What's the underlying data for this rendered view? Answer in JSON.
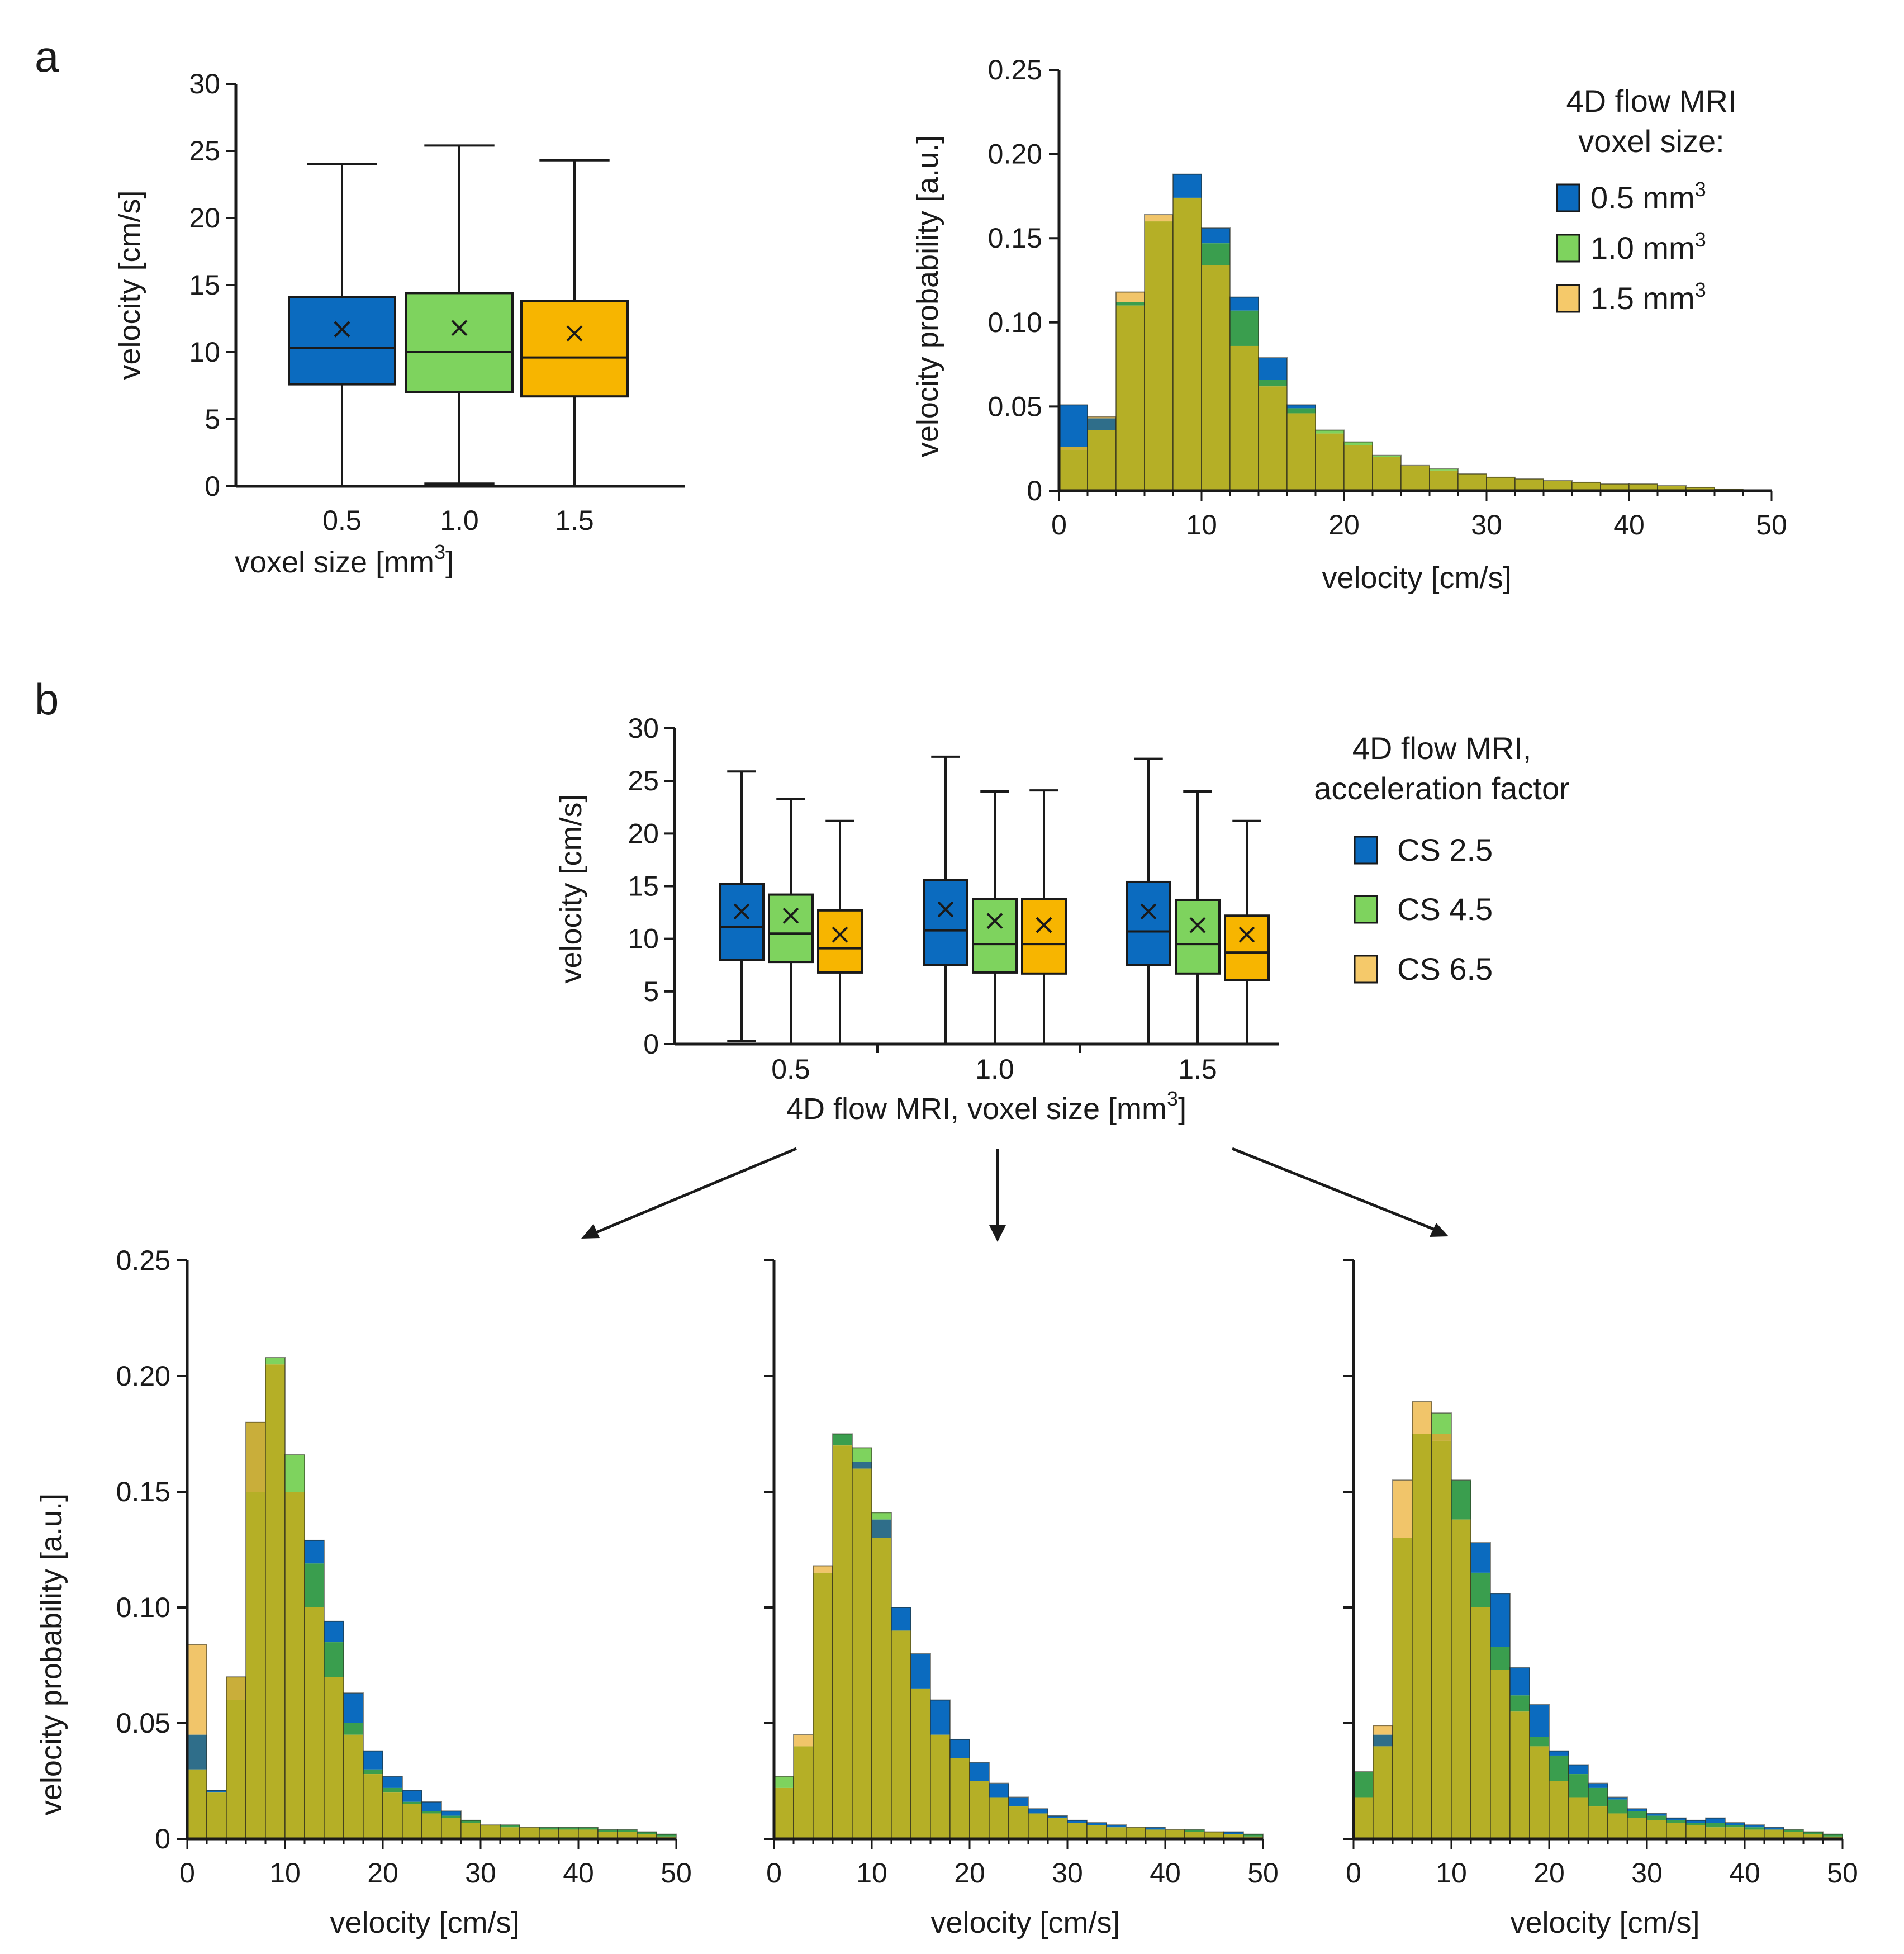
{
  "panel_labels": {
    "a": "a",
    "b": "b"
  },
  "colors": {
    "blue": "#0b6bbf",
    "green": "#7ed35e",
    "orange": "#f7b500",
    "mix": "#b5af26",
    "axis": "#1a1a1a"
  },
  "chart_data": [
    {
      "id": "a_box",
      "type": "box",
      "xlabel": "voxel size [mm",
      "xlabel_sup": "3",
      "xlabel_end": "]",
      "ylabel": "velocity [cm/s]",
      "ylim": [
        0,
        30
      ],
      "yticks": [
        0,
        5,
        10,
        15,
        20,
        25,
        30
      ],
      "categories": [
        "0.5",
        "1.0",
        "1.5"
      ],
      "boxes": [
        {
          "name": "0.5",
          "min": 0,
          "q1": 7.6,
          "median": 10.3,
          "q3": 14.1,
          "max": 24.0,
          "mean": 11.7,
          "color": "#0b6bbf"
        },
        {
          "name": "1.0",
          "min": 0.2,
          "q1": 7.0,
          "median": 10.0,
          "q3": 14.4,
          "max": 25.4,
          "mean": 11.8,
          "color": "#7ed35e"
        },
        {
          "name": "1.5",
          "min": 0,
          "q1": 6.7,
          "median": 9.6,
          "q3": 13.8,
          "max": 24.3,
          "mean": 11.4,
          "color": "#f7b500"
        }
      ]
    },
    {
      "id": "a_hist",
      "type": "histogram",
      "xlabel": "velocity [cm/s]",
      "ylabel": "velocity probability [a.u.]",
      "xlim": [
        0,
        50
      ],
      "ylim": [
        0,
        0.25
      ],
      "xticks": [
        "0",
        "10",
        "20",
        "30",
        "40",
        "50"
      ],
      "yticks": [
        "0",
        "0.05",
        "0.10",
        "0.15",
        "0.20",
        "0.25"
      ],
      "bin_width": 2,
      "legend_title": [
        "4D flow MRI",
        "voxel size:"
      ],
      "series": [
        {
          "name": "0.5 mm",
          "sup": "3",
          "color": "#0b6bbf",
          "values": [
            0.051,
            0.043,
            0.11,
            0.16,
            0.188,
            0.156,
            0.115,
            0.079,
            0.051,
            0.034,
            0.027,
            0.02,
            0.015,
            0.012,
            0.01,
            0.008,
            0.007,
            0.006,
            0.005,
            0.004,
            0.004,
            0.003,
            0.002,
            0.001,
            0.0
          ]
        },
        {
          "name": "1.0 mm",
          "sup": "3",
          "color": "#7ed35e",
          "values": [
            0.024,
            0.036,
            0.112,
            0.16,
            0.174,
            0.147,
            0.107,
            0.066,
            0.049,
            0.036,
            0.029,
            0.021,
            0.015,
            0.013,
            0.01,
            0.008,
            0.007,
            0.006,
            0.005,
            0.004,
            0.004,
            0.003,
            0.002,
            0.001,
            0.0
          ]
        },
        {
          "name": "1.5 mm",
          "sup": "3",
          "color": "#f7b500",
          "values": [
            0.026,
            0.044,
            0.118,
            0.164,
            0.174,
            0.134,
            0.086,
            0.062,
            0.046,
            0.034,
            0.027,
            0.02,
            0.015,
            0.012,
            0.01,
            0.008,
            0.007,
            0.006,
            0.005,
            0.004,
            0.004,
            0.003,
            0.002,
            0.001,
            0.0
          ]
        }
      ]
    },
    {
      "id": "b_box",
      "type": "box",
      "xlabel": "4D flow MRI, voxel size [mm",
      "xlabel_sup": "3",
      "xlabel_end": "]",
      "ylabel": "velocity [cm/s]",
      "ylim": [
        0,
        30
      ],
      "yticks": [
        0,
        5,
        10,
        15,
        20,
        25,
        30
      ],
      "categories": [
        "0.5",
        "1.0",
        "1.5"
      ],
      "legend_title": [
        "4D flow MRI,",
        "acceleration factor"
      ],
      "legend": [
        {
          "name": "CS 2.5",
          "color": "#0b6bbf"
        },
        {
          "name": "CS 4.5",
          "color": "#7ed35e"
        },
        {
          "name": "CS 6.5",
          "color": "#f7b500"
        }
      ],
      "groups": [
        {
          "category": "0.5",
          "boxes": [
            {
              "name": "CS 2.5",
              "min": 0.3,
              "q1": 8.0,
              "median": 11.1,
              "q3": 15.2,
              "max": 25.9,
              "mean": 12.6
            },
            {
              "name": "CS 4.5",
              "min": 0,
              "q1": 7.8,
              "median": 10.5,
              "q3": 14.2,
              "max": 23.3,
              "mean": 12.2
            },
            {
              "name": "CS 6.5",
              "min": 0,
              "q1": 6.8,
              "median": 9.1,
              "q3": 12.7,
              "max": 21.2,
              "mean": 10.4
            }
          ]
        },
        {
          "category": "1.0",
          "boxes": [
            {
              "name": "CS 2.5",
              "min": 0,
              "q1": 7.5,
              "median": 10.8,
              "q3": 15.6,
              "max": 27.3,
              "mean": 12.8
            },
            {
              "name": "CS 4.5",
              "min": 0,
              "q1": 6.8,
              "median": 9.5,
              "q3": 13.8,
              "max": 24.0,
              "mean": 11.7
            },
            {
              "name": "CS 6.5",
              "min": 0,
              "q1": 6.7,
              "median": 9.5,
              "q3": 13.8,
              "max": 24.1,
              "mean": 11.3
            }
          ]
        },
        {
          "category": "1.5",
          "boxes": [
            {
              "name": "CS 2.5",
              "min": 0,
              "q1": 7.5,
              "median": 10.7,
              "q3": 15.4,
              "max": 27.1,
              "mean": 12.6
            },
            {
              "name": "CS 4.5",
              "min": 0,
              "q1": 6.7,
              "median": 9.5,
              "q3": 13.7,
              "max": 24.0,
              "mean": 11.3
            },
            {
              "name": "CS 6.5",
              "min": 0,
              "q1": 6.1,
              "median": 8.7,
              "q3": 12.2,
              "max": 21.2,
              "mean": 10.4
            }
          ]
        }
      ]
    },
    {
      "id": "b_hist_05",
      "type": "histogram",
      "xlabel": "velocity [cm/s]",
      "ylabel": "velocity probability [a.u.]",
      "xlim": [
        0,
        50
      ],
      "ylim": [
        0,
        0.25
      ],
      "xticks": [
        "0",
        "10",
        "20",
        "30",
        "40",
        "50"
      ],
      "yticks": [
        "0",
        "0.05",
        "0.10",
        "0.15",
        "0.20",
        "0.25"
      ],
      "bin_width": 2,
      "series": [
        {
          "name": "CS 2.5",
          "color": "#0b6bbf",
          "values": [
            0.045,
            0.021,
            0.07,
            0.18,
            0.205,
            0.15,
            0.129,
            0.094,
            0.063,
            0.038,
            0.027,
            0.021,
            0.016,
            0.012,
            0.008,
            0.006,
            0.006,
            0.005,
            0.005,
            0.005,
            0.005,
            0.004,
            0.004,
            0.003,
            0.002
          ]
        },
        {
          "name": "CS 4.5",
          "color": "#7ed35e",
          "values": [
            0.03,
            0.02,
            0.06,
            0.15,
            0.208,
            0.166,
            0.119,
            0.085,
            0.05,
            0.03,
            0.022,
            0.016,
            0.012,
            0.01,
            0.008,
            0.006,
            0.006,
            0.005,
            0.005,
            0.005,
            0.005,
            0.004,
            0.004,
            0.003,
            0.002
          ]
        },
        {
          "name": "CS 6.5",
          "color": "#f7b500",
          "values": [
            0.084,
            0.02,
            0.07,
            0.18,
            0.205,
            0.15,
            0.1,
            0.07,
            0.045,
            0.028,
            0.02,
            0.015,
            0.011,
            0.009,
            0.007,
            0.006,
            0.005,
            0.005,
            0.004,
            0.004,
            0.004,
            0.003,
            0.003,
            0.002,
            0.001
          ]
        }
      ]
    },
    {
      "id": "b_hist_10",
      "type": "histogram",
      "xlabel": "velocity [cm/s]",
      "xlim": [
        0,
        50
      ],
      "ylim": [
        0,
        0.25
      ],
      "xticks": [
        "0",
        "10",
        "20",
        "30",
        "40",
        "50"
      ],
      "bin_width": 2,
      "series": [
        {
          "name": "CS 2.5",
          "color": "#0b6bbf",
          "values": [
            0.022,
            0.04,
            0.115,
            0.175,
            0.163,
            0.138,
            0.1,
            0.08,
            0.06,
            0.043,
            0.033,
            0.024,
            0.018,
            0.013,
            0.01,
            0.008,
            0.007,
            0.006,
            0.005,
            0.005,
            0.004,
            0.004,
            0.003,
            0.003,
            0.002
          ]
        },
        {
          "name": "CS 4.5",
          "color": "#7ed35e",
          "values": [
            0.027,
            0.04,
            0.115,
            0.175,
            0.169,
            0.141,
            0.09,
            0.065,
            0.045,
            0.035,
            0.025,
            0.018,
            0.014,
            0.011,
            0.009,
            0.007,
            0.006,
            0.005,
            0.005,
            0.004,
            0.004,
            0.004,
            0.003,
            0.002,
            0.002
          ]
        },
        {
          "name": "CS 6.5",
          "color": "#f7b500",
          "values": [
            0.022,
            0.045,
            0.118,
            0.17,
            0.16,
            0.13,
            0.09,
            0.065,
            0.045,
            0.035,
            0.025,
            0.018,
            0.014,
            0.011,
            0.009,
            0.007,
            0.006,
            0.005,
            0.005,
            0.004,
            0.004,
            0.003,
            0.003,
            0.002,
            0.001
          ]
        }
      ]
    },
    {
      "id": "b_hist_15",
      "type": "histogram",
      "xlabel": "velocity [cm/s]",
      "xlim": [
        0,
        50
      ],
      "ylim": [
        0,
        0.25
      ],
      "xticks": [
        "0",
        "10",
        "20",
        "30",
        "40",
        "50"
      ],
      "bin_width": 2,
      "series": [
        {
          "name": "CS 2.5",
          "color": "#0b6bbf",
          "values": [
            0.029,
            0.045,
            0.13,
            0.175,
            0.172,
            0.155,
            0.128,
            0.106,
            0.074,
            0.058,
            0.038,
            0.032,
            0.024,
            0.018,
            0.013,
            0.011,
            0.009,
            0.008,
            0.009,
            0.007,
            0.006,
            0.005,
            0.004,
            0.003,
            0.002
          ]
        },
        {
          "name": "CS 4.5",
          "color": "#7ed35e",
          "values": [
            0.029,
            0.04,
            0.13,
            0.175,
            0.184,
            0.155,
            0.115,
            0.083,
            0.062,
            0.044,
            0.036,
            0.028,
            0.022,
            0.017,
            0.012,
            0.01,
            0.008,
            0.007,
            0.007,
            0.006,
            0.005,
            0.004,
            0.004,
            0.003,
            0.002
          ]
        },
        {
          "name": "CS 6.5",
          "color": "#f7b500",
          "values": [
            0.018,
            0.049,
            0.155,
            0.189,
            0.175,
            0.138,
            0.1,
            0.073,
            0.055,
            0.04,
            0.025,
            0.018,
            0.014,
            0.011,
            0.009,
            0.008,
            0.007,
            0.006,
            0.005,
            0.005,
            0.004,
            0.004,
            0.003,
            0.002,
            0.001
          ]
        }
      ]
    }
  ]
}
